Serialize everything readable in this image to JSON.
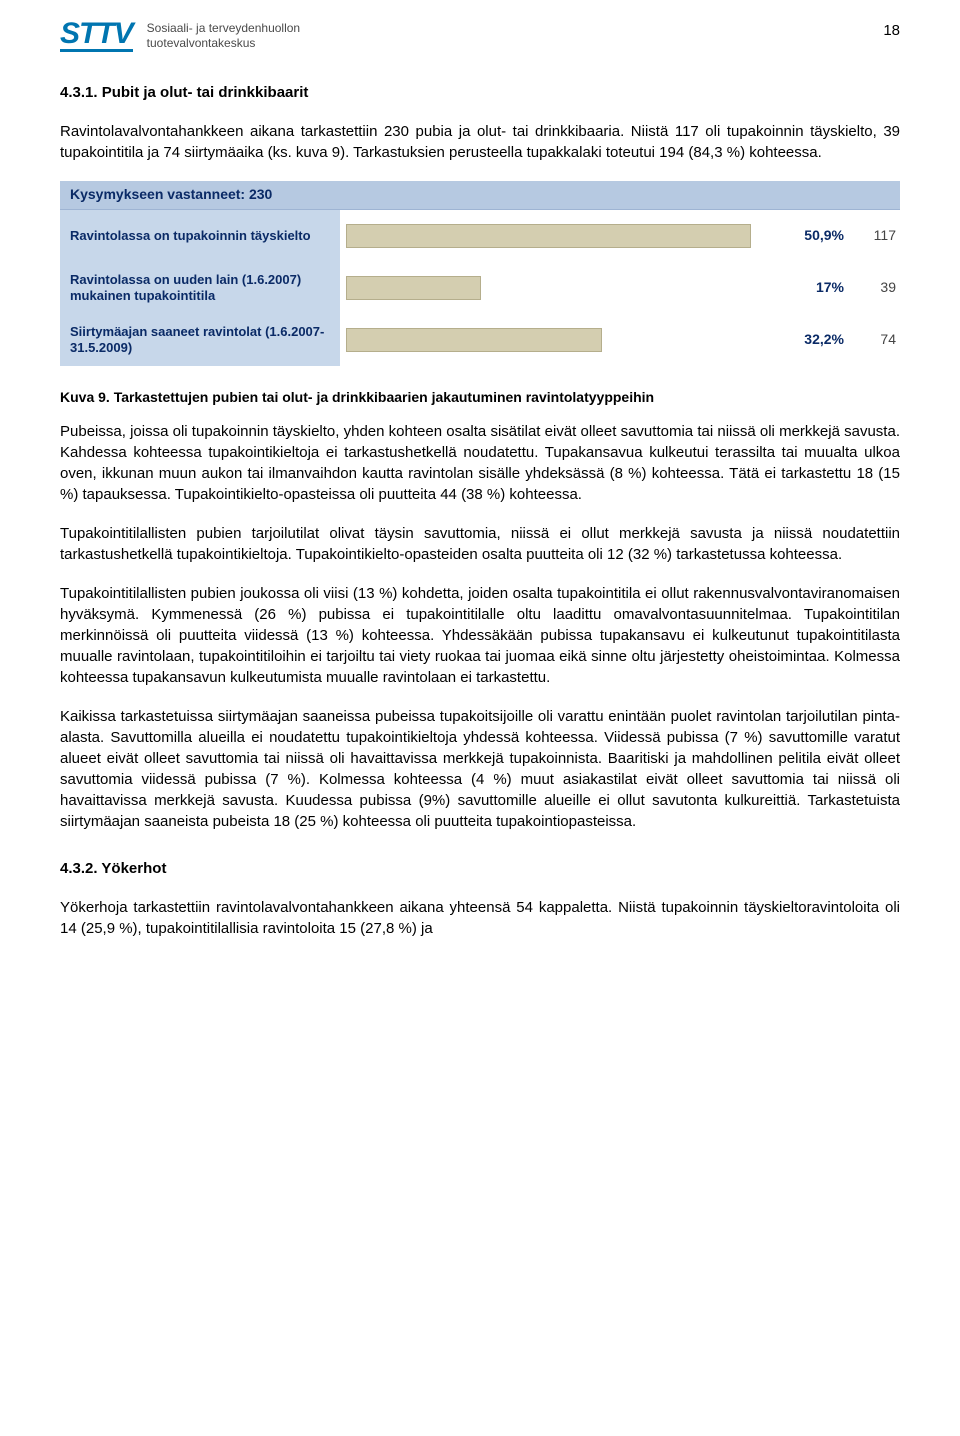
{
  "header": {
    "logo_text": "STTV",
    "subtitle_line1": "Sosiaali- ja terveydenhuollon",
    "subtitle_line2": "tuotevalvontakeskus",
    "page_number": "18"
  },
  "sections": {
    "s1_heading": "4.3.1. Pubit ja olut- tai drinkkibaarit",
    "s1_p1": "Ravintolavalvontahankkeen aikana tarkastettiin 230 pubia ja olut- tai drinkkibaaria. Niistä 117 oli tupakoinnin täyskielto, 39 tupakointitila ja 74 siirtymäaika (ks. kuva 9). Tarkastuksien perusteella tupakkalaki toteutui 194 (84,3 %) kohteessa.",
    "figure_caption": "Kuva 9. Tarkastettujen pubien tai olut- ja drinkkibaarien jakautuminen ravintolatyyppeihin",
    "s1_p2": "Pubeissa, joissa oli tupakoinnin täyskielto, yhden kohteen osalta sisätilat eivät olleet savuttomia tai niissä oli merkkejä savusta. Kahdessa kohteessa tupakointikieltoja ei tarkastushetkellä noudatettu. Tupakansavua kulkeutui terassilta tai muualta ulkoa oven, ikkunan muun aukon tai ilmanvaihdon kautta ravintolan sisälle yhdeksässä (8 %) kohteessa. Tätä ei tarkastettu 18 (15 %) tapauksessa. Tupakointikielto-opasteissa oli puutteita 44 (38 %) kohteessa.",
    "s1_p3": "Tupakointitilallisten pubien tarjoilutilat olivat täysin savuttomia, niissä ei ollut merkkejä savusta ja niissä noudatettiin tarkastushetkellä tupakointikieltoja. Tupakointikielto-opasteiden osalta puutteita oli 12 (32 %) tarkastetussa kohteessa.",
    "s1_p4": "Tupakointitilallisten pubien joukossa oli viisi (13 %) kohdetta, joiden osalta tupakointitila ei ollut rakennusvalvontaviranomaisen hyväksymä. Kymmenessä (26 %) pubissa ei tupakointitilalle oltu laadittu omavalvontasuunnitelmaa. Tupakointitilan merkinnöissä oli puutteita viidessä (13 %) kohteessa. Yhdessäkään pubissa tupakansavu ei kulkeutunut tupakointitilasta muualle ravintolaan, tupakointitiloihin ei tarjoiltu tai viety ruokaa tai juomaa eikä sinne oltu järjestetty oheistoimintaa. Kolmessa kohteessa tupakansavun kulkeutumista muualle ravintolaan ei tarkastettu.",
    "s1_p5": "Kaikissa tarkastetuissa siirtymäajan saaneissa pubeissa tupakoitsijoille oli varattu enintään puolet ravintolan tarjoilutilan pinta-alasta. Savuttomilla alueilla ei noudatettu tupakointikieltoja yhdessä kohteessa. Viidessä pubissa (7 %) savuttomille varatut alueet eivät olleet savuttomia tai niissä oli havaittavissa merkkejä tupakoinnista. Baaritiski ja mahdollinen pelitila eivät olleet savuttomia viidessä pubissa (7 %). Kolmessa kohteessa (4 %) muut asiakastilat eivät olleet savuttomia tai niissä oli havaittavissa merkkejä savusta. Kuudessa pubissa (9%) savuttomille alueille ei ollut savutonta kulkureittiä. Tarkastetuista siirtymäajan saaneista pubeista 18 (25 %) kohteessa oli puutteita tupakointiopasteissa.",
    "s2_heading": "4.3.2. Yökerhot",
    "s2_p1": "Yökerhoja tarkastettiin ravintolavalvontahankkeen aikana yhteensä 54 kappaletta. Niistä tupakoinnin täyskieltoravintoloita oli 14 (25,9 %), tupakointitilallisia ravintoloita 15 (27,8 %) ja"
  },
  "chart": {
    "type": "bar",
    "answered_label": "Kysymykseen vastanneet: 230",
    "bar_color": "#d4ceb0",
    "bar_border": "#b5ae8c",
    "label_bg": "#c7d7ea",
    "header_bg": "#b6c9e1",
    "label_text_color": "#0a2a66",
    "pct_color": "#0a2a66",
    "count_color": "#444444",
    "max_pct": 55,
    "rows": [
      {
        "label": "Ravintolassa on tupakoinnin täyskielto",
        "pct": 50.9,
        "pct_label": "50,9%",
        "count": "117"
      },
      {
        "label": "Ravintolassa on uuden lain (1.6.2007) mukainen tupakointitila",
        "pct": 17.0,
        "pct_label": "17%",
        "count": "39"
      },
      {
        "label": "Siirtymäajan saaneet ravintolat (1.6.2007-31.5.2009)",
        "pct": 32.2,
        "pct_label": "32,2%",
        "count": "74"
      }
    ]
  }
}
